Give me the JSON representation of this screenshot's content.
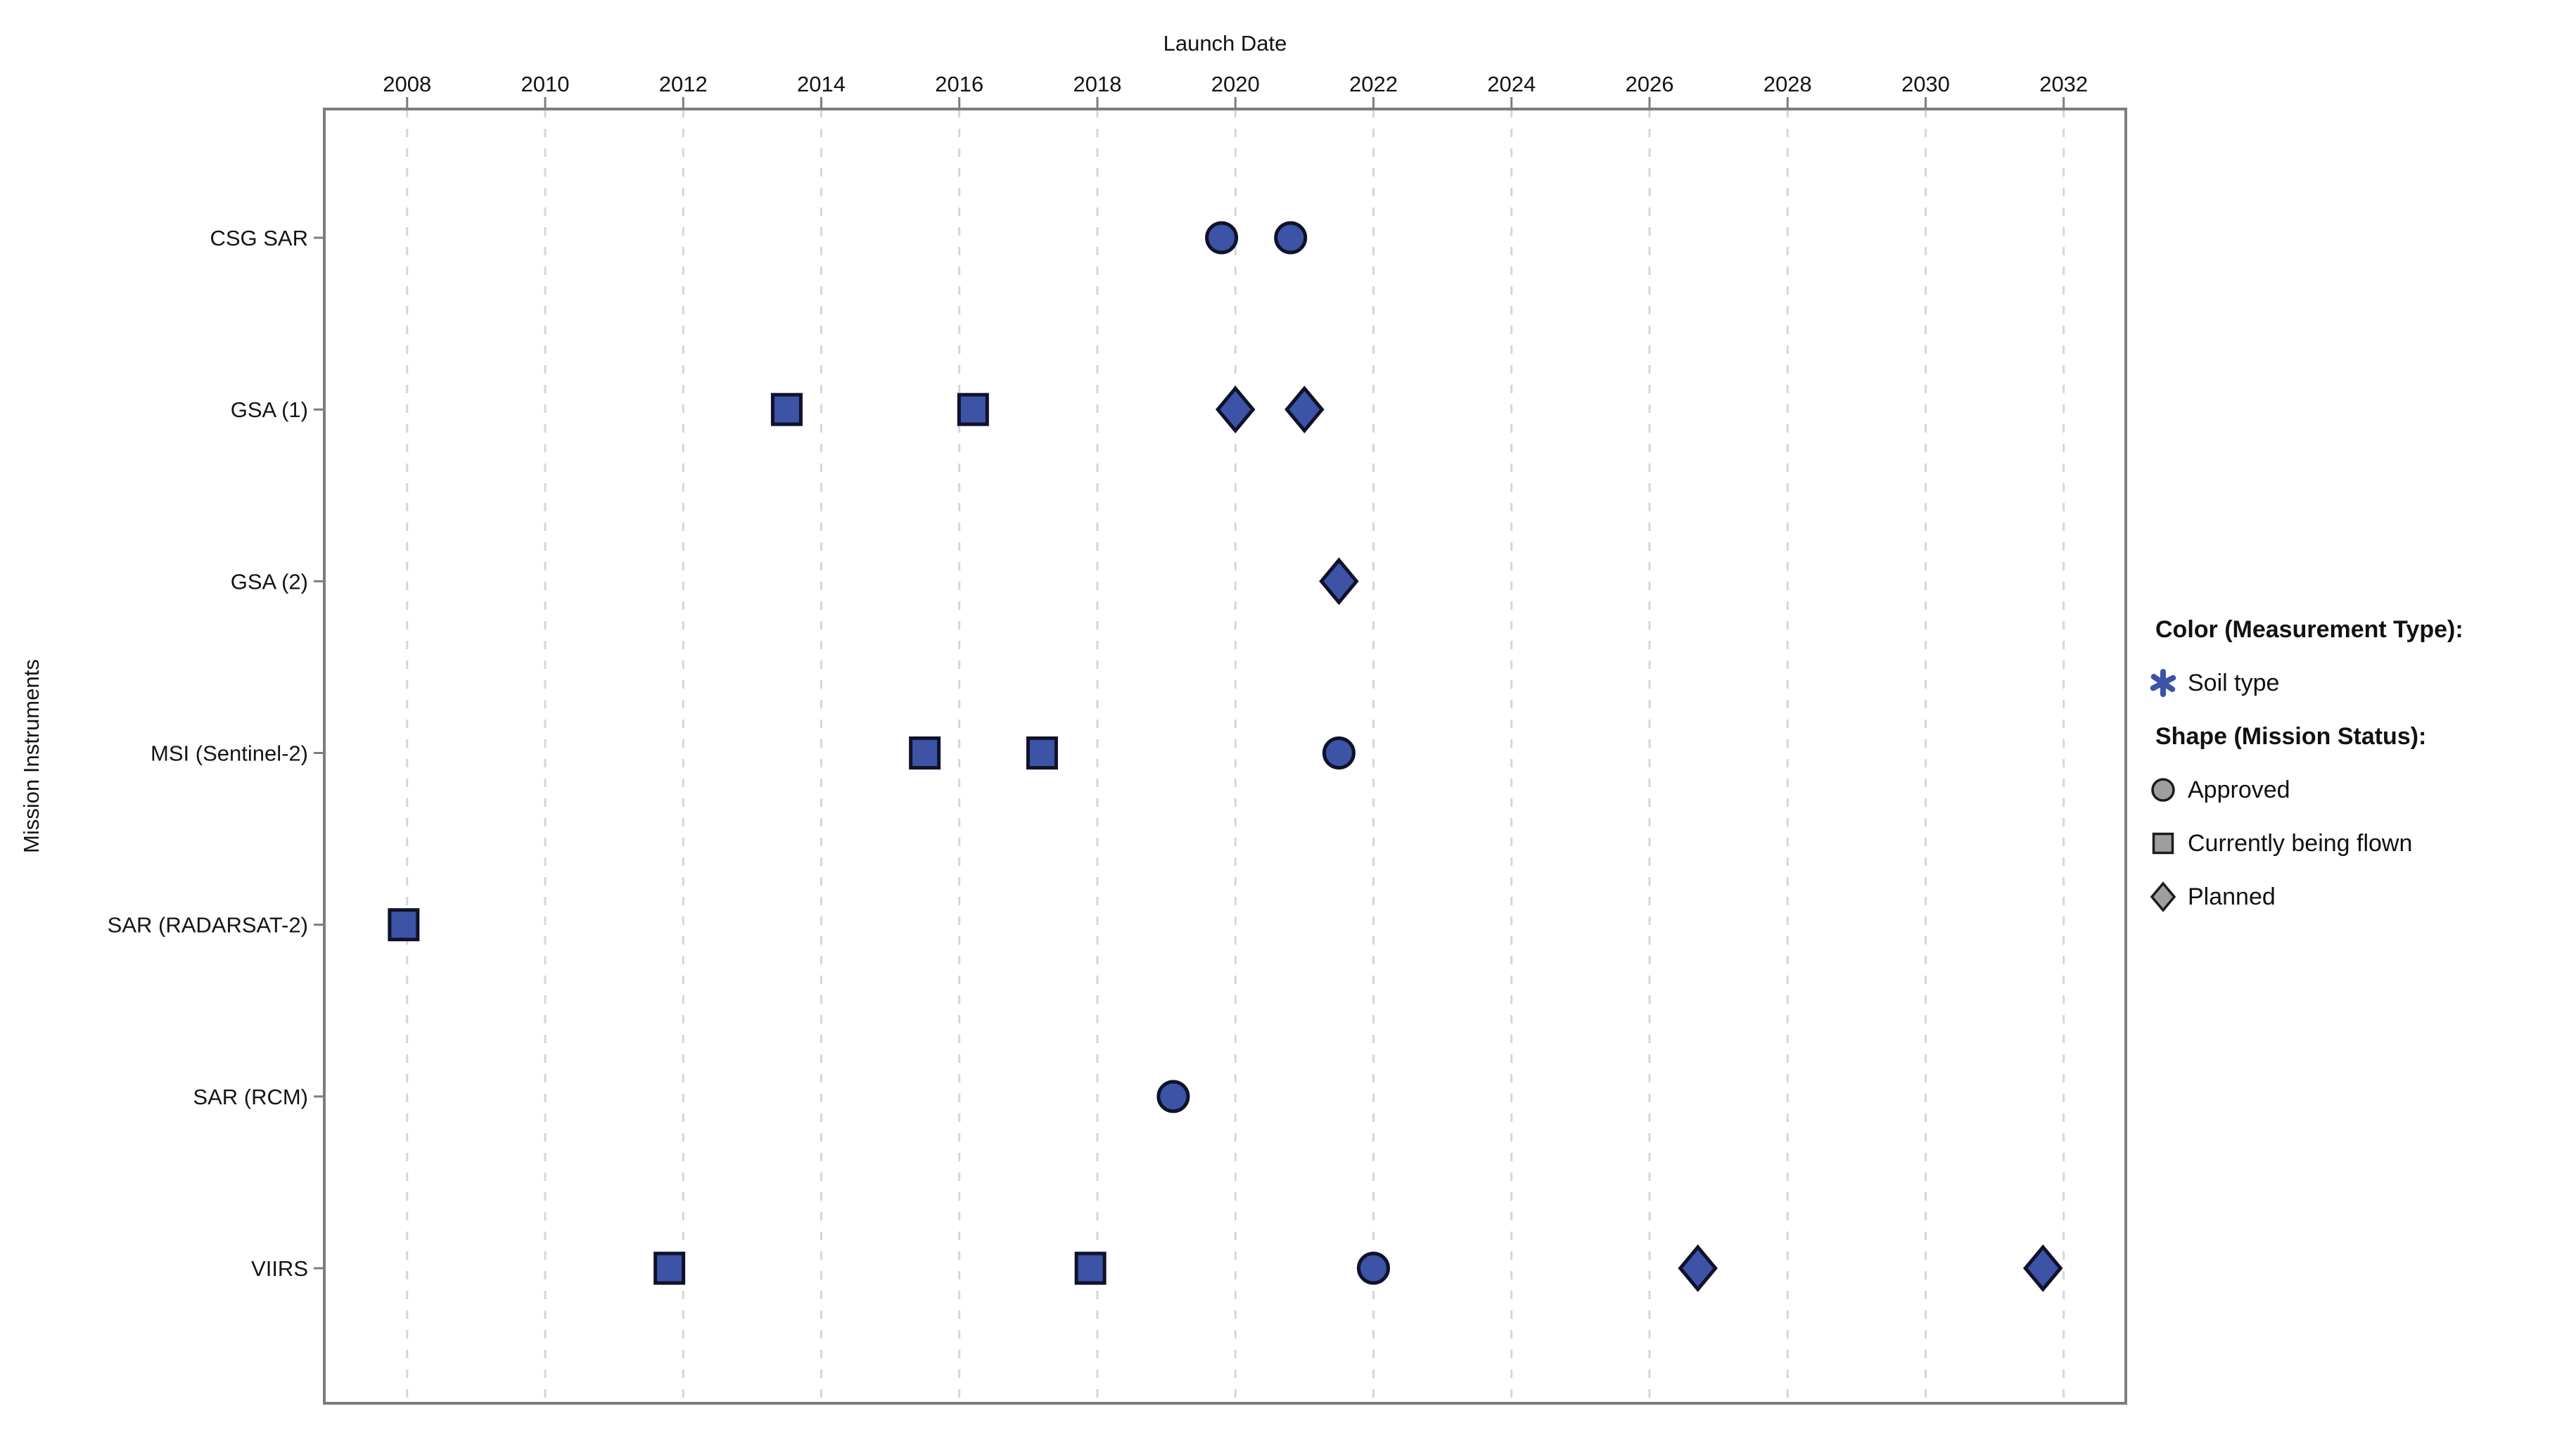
{
  "chart_data": {
    "type": "scatter",
    "xlabel": "Launch Date",
    "ylabel": "Mission Instruments",
    "x_ticks": [
      2008,
      2010,
      2012,
      2014,
      2016,
      2018,
      2020,
      2022,
      2024,
      2026,
      2028,
      2030,
      2032
    ],
    "x_range": [
      2006.8,
      2032.9
    ],
    "grid": "vertical-dashed",
    "categories": [
      "CSG SAR",
      "GSA (1)",
      "GSA (2)",
      "MSI (Sentinel-2)",
      "SAR (RADARSAT-2)",
      "SAR (RCM)",
      "VIIRS"
    ],
    "points": [
      {
        "instrument": "CSG SAR",
        "launch_year": 2019.8,
        "status": "Approved",
        "measurement": "Soil type"
      },
      {
        "instrument": "CSG SAR",
        "launch_year": 2020.8,
        "status": "Approved",
        "measurement": "Soil type"
      },
      {
        "instrument": "GSA (1)",
        "launch_year": 2013.5,
        "status": "Currently being flown",
        "measurement": "Soil type"
      },
      {
        "instrument": "GSA (1)",
        "launch_year": 2016.2,
        "status": "Currently being flown",
        "measurement": "Soil type"
      },
      {
        "instrument": "GSA (1)",
        "launch_year": 2020.0,
        "status": "Planned",
        "measurement": "Soil type"
      },
      {
        "instrument": "GSA (1)",
        "launch_year": 2021.0,
        "status": "Planned",
        "measurement": "Soil type"
      },
      {
        "instrument": "GSA (2)",
        "launch_year": 2021.5,
        "status": "Planned",
        "measurement": "Soil type"
      },
      {
        "instrument": "MSI (Sentinel-2)",
        "launch_year": 2015.5,
        "status": "Currently being flown",
        "measurement": "Soil type"
      },
      {
        "instrument": "MSI (Sentinel-2)",
        "launch_year": 2017.2,
        "status": "Currently being flown",
        "measurement": "Soil type"
      },
      {
        "instrument": "MSI (Sentinel-2)",
        "launch_year": 2021.5,
        "status": "Approved",
        "measurement": "Soil type"
      },
      {
        "instrument": "SAR (RADARSAT-2)",
        "launch_year": 2007.95,
        "status": "Currently being flown",
        "measurement": "Soil type"
      },
      {
        "instrument": "SAR (RCM)",
        "launch_year": 2019.1,
        "status": "Approved",
        "measurement": "Soil type"
      },
      {
        "instrument": "VIIRS",
        "launch_year": 2011.8,
        "status": "Currently being flown",
        "measurement": "Soil type"
      },
      {
        "instrument": "VIIRS",
        "launch_year": 2017.9,
        "status": "Currently being flown",
        "measurement": "Soil type"
      },
      {
        "instrument": "VIIRS",
        "launch_year": 2022.0,
        "status": "Approved",
        "measurement": "Soil type"
      },
      {
        "instrument": "VIIRS",
        "launch_year": 2026.7,
        "status": "Planned",
        "measurement": "Soil type"
      },
      {
        "instrument": "VIIRS",
        "launch_year": 2031.7,
        "status": "Planned",
        "measurement": "Soil type"
      }
    ],
    "status_shapes": {
      "Approved": "circle",
      "Currently being flown": "square",
      "Planned": "diamond"
    },
    "marker_color": "#3c53a6",
    "style": {
      "axis_color": "#7d7d7d",
      "grid_color": "#d6d6d6",
      "text_color": "#141414",
      "marker_edge_color": "#10122a"
    },
    "legend": {
      "color_heading": "Color (Measurement Type):",
      "color_items": [
        {
          "label": "Soil type",
          "marker": "asterisk",
          "color": "#3c53a6"
        }
      ],
      "shape_heading": "Shape (Mission Status):",
      "shape_items": [
        {
          "label": "Approved",
          "marker": "circle"
        },
        {
          "label": "Currently being flown",
          "marker": "square"
        },
        {
          "label": "Planned",
          "marker": "diamond"
        }
      ],
      "shape_item_color": "#9e9e9e"
    }
  }
}
